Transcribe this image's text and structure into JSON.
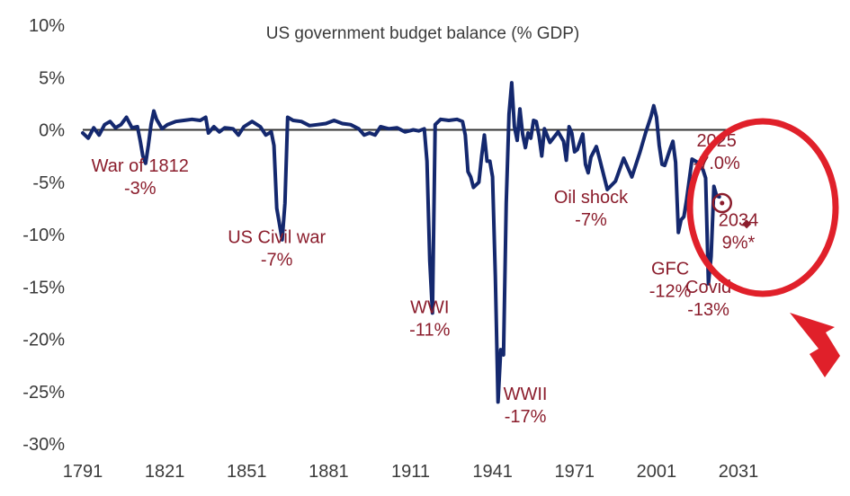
{
  "chart_data": {
    "type": "line",
    "title": "US government budget balance (% GDP)",
    "xlabel": "",
    "ylabel": "",
    "xlim": [
      1791,
      2040
    ],
    "ylim": [
      -30,
      10
    ],
    "x_ticks": [
      1791,
      1821,
      1851,
      1881,
      1911,
      1941,
      1971,
      2001,
      2031
    ],
    "y_ticks": [
      10,
      5,
      0,
      -5,
      -10,
      -15,
      -20,
      -25,
      -30
    ],
    "y_tick_labels": [
      "10%",
      "5%",
      "0%",
      "-5%",
      "-10%",
      "-15%",
      "-20%",
      "-25%",
      "-30%"
    ],
    "grid": false,
    "zero_line": true,
    "colors": {
      "line": "#14286e",
      "annotation": "#8b1d2c",
      "highlight": "#e0202a",
      "marker": "#8b1d2c"
    },
    "series": [
      {
        "values": [
          [
            1791,
            -0.3
          ],
          [
            1793,
            -0.8
          ],
          [
            1795,
            0.2
          ],
          [
            1797,
            -0.5
          ],
          [
            1799,
            0.5
          ],
          [
            1801,
            0.8
          ],
          [
            1803,
            0.2
          ],
          [
            1805,
            0.5
          ],
          [
            1807,
            1.2
          ],
          [
            1809,
            0.2
          ],
          [
            1811,
            0.3
          ],
          [
            1812,
            -1.0
          ],
          [
            1813,
            -2.5
          ],
          [
            1814,
            -3.2
          ],
          [
            1815,
            -1.5
          ],
          [
            1816,
            0.5
          ],
          [
            1817,
            1.8
          ],
          [
            1818,
            1.0
          ],
          [
            1820,
            0.1
          ],
          [
            1822,
            0.5
          ],
          [
            1825,
            0.8
          ],
          [
            1828,
            0.9
          ],
          [
            1831,
            1.0
          ],
          [
            1834,
            0.9
          ],
          [
            1836,
            1.2
          ],
          [
            1837,
            -0.3
          ],
          [
            1839,
            0.3
          ],
          [
            1841,
            -0.2
          ],
          [
            1843,
            0.2
          ],
          [
            1846,
            0.1
          ],
          [
            1848,
            -0.5
          ],
          [
            1850,
            0.3
          ],
          [
            1853,
            0.8
          ],
          [
            1856,
            0.3
          ],
          [
            1858,
            -0.5
          ],
          [
            1860,
            -0.2
          ],
          [
            1861,
            -1.5
          ],
          [
            1862,
            -7.5
          ],
          [
            1863,
            -9.0
          ],
          [
            1864,
            -10.5
          ],
          [
            1865,
            -7.0
          ],
          [
            1866,
            1.2
          ],
          [
            1868,
            0.9
          ],
          [
            1871,
            0.8
          ],
          [
            1874,
            0.4
          ],
          [
            1877,
            0.5
          ],
          [
            1880,
            0.6
          ],
          [
            1883,
            0.9
          ],
          [
            1886,
            0.6
          ],
          [
            1889,
            0.5
          ],
          [
            1892,
            0.1
          ],
          [
            1894,
            -0.5
          ],
          [
            1896,
            -0.3
          ],
          [
            1898,
            -0.5
          ],
          [
            1900,
            0.3
          ],
          [
            1903,
            0.1
          ],
          [
            1906,
            0.2
          ],
          [
            1909,
            -0.2
          ],
          [
            1912,
            0.0
          ],
          [
            1914,
            -0.1
          ],
          [
            1916,
            0.1
          ],
          [
            1917,
            -3.0
          ],
          [
            1918,
            -12.5
          ],
          [
            1919,
            -17.5
          ],
          [
            1920,
            0.5
          ],
          [
            1922,
            1.0
          ],
          [
            1925,
            0.9
          ],
          [
            1928,
            1.0
          ],
          [
            1930,
            0.8
          ],
          [
            1931,
            -0.5
          ],
          [
            1932,
            -4.0
          ],
          [
            1933,
            -4.5
          ],
          [
            1934,
            -5.5
          ],
          [
            1936,
            -5.0
          ],
          [
            1937,
            -2.5
          ],
          [
            1938,
            -0.5
          ],
          [
            1939,
            -3.0
          ],
          [
            1940,
            -3.0
          ],
          [
            1941,
            -4.5
          ],
          [
            1942,
            -14.0
          ],
          [
            1943,
            -26.0
          ],
          [
            1944,
            -21.0
          ],
          [
            1945,
            -21.5
          ],
          [
            1946,
            -7.0
          ],
          [
            1947,
            1.5
          ],
          [
            1948,
            4.5
          ],
          [
            1949,
            0.3
          ],
          [
            1950,
            -1.0
          ],
          [
            1951,
            2.0
          ],
          [
            1952,
            -0.4
          ],
          [
            1953,
            -1.7
          ],
          [
            1954,
            -0.3
          ],
          [
            1955,
            -0.8
          ],
          [
            1956,
            0.9
          ],
          [
            1957,
            0.8
          ],
          [
            1958,
            -0.6
          ],
          [
            1959,
            -2.5
          ],
          [
            1960,
            0.1
          ],
          [
            1962,
            -1.2
          ],
          [
            1965,
            -0.2
          ],
          [
            1967,
            -1.1
          ],
          [
            1968,
            -2.9
          ],
          [
            1969,
            0.3
          ],
          [
            1970,
            -0.3
          ],
          [
            1971,
            -2.1
          ],
          [
            1972,
            -1.9
          ],
          [
            1974,
            -0.4
          ],
          [
            1975,
            -3.3
          ],
          [
            1976,
            -4.1
          ],
          [
            1977,
            -2.6
          ],
          [
            1979,
            -1.6
          ],
          [
            1980,
            -2.6
          ],
          [
            1983,
            -5.7
          ],
          [
            1986,
            -4.9
          ],
          [
            1989,
            -2.7
          ],
          [
            1992,
            -4.5
          ],
          [
            1995,
            -2.1
          ],
          [
            1997,
            -0.3
          ],
          [
            1999,
            1.3
          ],
          [
            2000,
            2.3
          ],
          [
            2001,
            1.2
          ],
          [
            2002,
            -1.5
          ],
          [
            2003,
            -3.3
          ],
          [
            2004,
            -3.4
          ],
          [
            2006,
            -1.8
          ],
          [
            2007,
            -1.1
          ],
          [
            2008,
            -3.1
          ],
          [
            2009,
            -9.8
          ],
          [
            2010,
            -8.6
          ],
          [
            2011,
            -8.3
          ],
          [
            2012,
            -6.7
          ],
          [
            2014,
            -2.8
          ],
          [
            2016,
            -3.1
          ],
          [
            2018,
            -3.8
          ],
          [
            2019,
            -4.6
          ],
          [
            2020,
            -14.7
          ],
          [
            2021,
            -12.1
          ],
          [
            2022,
            -5.4
          ],
          [
            2023,
            -6.3
          ],
          [
            2024,
            -6.4
          ]
        ]
      }
    ],
    "projections": [
      {
        "year": 2025,
        "value": -7.0
      },
      {
        "year": 2034,
        "value": -9.0
      }
    ],
    "annotations": [
      {
        "lines": [
          "War of 1812",
          "-3%"
        ],
        "x": 1812,
        "y": -4.0
      },
      {
        "lines": [
          "US Civil war",
          "-7%"
        ],
        "x": 1862,
        "y": -10.8
      },
      {
        "lines": [
          "WWI",
          "-11%"
        ],
        "x": 1918,
        "y": -17.5
      },
      {
        "lines": [
          "WWII",
          "-17%"
        ],
        "x": 1953,
        "y": -25.8
      },
      {
        "lines": [
          "Oil shock",
          "-7%"
        ],
        "x": 1977,
        "y": -7.0
      },
      {
        "lines": [
          "GFC",
          "-12%"
        ],
        "x": 2006,
        "y": -13.8
      },
      {
        "lines": [
          "Covid",
          "-13%"
        ],
        "x": 2020,
        "y": -15.6
      },
      {
        "lines": [
          "2025",
          "-7.0%"
        ],
        "x": 2023,
        "y": -1.6
      },
      {
        "lines": [
          "2034",
          "9%*"
        ],
        "x": 2031,
        "y": -9.2
      }
    ]
  }
}
